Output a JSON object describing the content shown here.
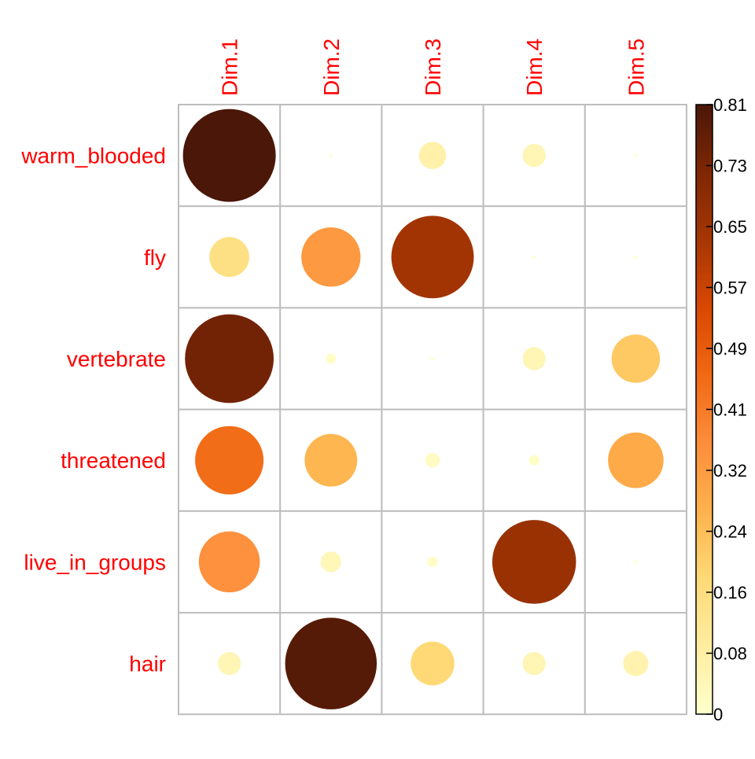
{
  "chart_data": {
    "type": "heatmap",
    "rows": [
      "warm_blooded",
      "fly",
      "vertebrate",
      "threatened",
      "live_in_groups",
      "hair"
    ],
    "columns": [
      "Dim.1",
      "Dim.2",
      "Dim.3",
      "Dim.4",
      "Dim.5"
    ],
    "values": [
      [
        0.81,
        0.0,
        0.07,
        0.05,
        0.0
      ],
      [
        0.15,
        0.33,
        0.64,
        0.0,
        0.0
      ],
      [
        0.74,
        0.01,
        0.0,
        0.05,
        0.22
      ],
      [
        0.44,
        0.26,
        0.02,
        0.01,
        0.29
      ],
      [
        0.35,
        0.04,
        0.01,
        0.66,
        0.0
      ],
      [
        0.05,
        0.79,
        0.18,
        0.05,
        0.06
      ]
    ],
    "colorbar": {
      "min": 0,
      "max": 0.81,
      "ticks": [
        "0",
        "0.08",
        "0.16",
        "0.24",
        "0.32",
        "0.41",
        "0.49",
        "0.57",
        "0.65",
        "0.73",
        "0.81"
      ],
      "colors": [
        "#FFFFCC",
        "#FFEDA0",
        "#FED976",
        "#FEB24C",
        "#FD8D3C",
        "#F16913",
        "#D94801",
        "#A63603",
        "#7F2704",
        "#4A1708"
      ]
    },
    "label_color": "#FF0000",
    "grid": true,
    "shape": "circle",
    "legend_position": "right"
  }
}
